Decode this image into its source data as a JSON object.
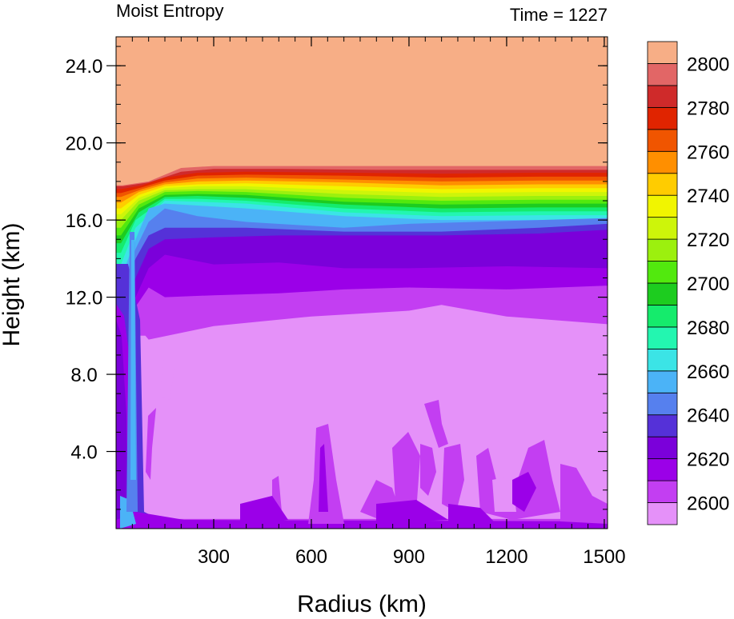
{
  "chart_data": {
    "type": "heatmap",
    "title_left": "Moist Entropy",
    "title_right": "Time = 1227",
    "xlabel": "Radius (km)",
    "ylabel": "Height (km)",
    "xlim": [
      0,
      1510
    ],
    "ylim": [
      0,
      25.5
    ],
    "x_ticks": [
      300,
      600,
      900,
      1200,
      1500
    ],
    "x_tick_labels": [
      "300",
      "600",
      "900",
      "1200",
      "1500"
    ],
    "y_ticks": [
      4,
      8,
      12,
      16,
      20,
      24
    ],
    "y_tick_labels": [
      "4.0",
      "8.0",
      "12.0",
      "16.0",
      "20.0",
      "24.0"
    ],
    "colorbar": {
      "levels": [
        2600,
        2610,
        2620,
        2630,
        2640,
        2650,
        2660,
        2670,
        2680,
        2690,
        2700,
        2710,
        2720,
        2730,
        2740,
        2750,
        2760,
        2770,
        2780,
        2790,
        2800
      ],
      "labels": [
        "2600",
        "2620",
        "2640",
        "2660",
        "2680",
        "2700",
        "2720",
        "2740",
        "2760",
        "2780",
        "2800"
      ],
      "colors": [
        "#E591F9",
        "#C33EF2",
        "#9B00E8",
        "#7B00DA",
        "#5531D8",
        "#5680EE",
        "#4BB3F7",
        "#3BE4E6",
        "#23F6B0",
        "#15EB6C",
        "#1DCC1F",
        "#52E90E",
        "#9CF00E",
        "#CDF50A",
        "#F1F500",
        "#FFCC00",
        "#FF8F00",
        "#F05500",
        "#E02400",
        "#CF2A2A",
        "#E26666",
        "#F7AE86"
      ]
    },
    "contour_layers": [
      {
        "level_index": 21,
        "x": [
          0,
          1510,
          1510,
          0
        ],
        "y": [
          25.5,
          25.5,
          0,
          0
        ]
      },
      {
        "level_index": 20,
        "x": [
          0,
          20,
          100,
          200,
          300,
          500,
          800,
          1100,
          1300,
          1510,
          1510,
          0
        ],
        "y": [
          17.8,
          17.8,
          18.0,
          18.7,
          18.8,
          18.8,
          18.8,
          18.8,
          18.8,
          18.8,
          0,
          0
        ]
      },
      {
        "level_index": 19,
        "x": [
          0,
          20,
          100,
          200,
          300,
          500,
          800,
          1100,
          1300,
          1510,
          1510,
          0
        ],
        "y": [
          17.75,
          17.75,
          17.95,
          18.5,
          18.65,
          18.65,
          18.6,
          18.6,
          18.6,
          18.6,
          0,
          0
        ]
      },
      {
        "level_index": 18,
        "x": [
          0,
          15,
          80,
          150,
          250,
          400,
          700,
          1000,
          1300,
          1510,
          1510,
          0
        ],
        "y": [
          17.6,
          17.6,
          17.8,
          18.2,
          18.45,
          18.5,
          18.45,
          18.4,
          18.45,
          18.45,
          0,
          0
        ]
      },
      {
        "level_index": 17,
        "x": [
          0,
          15,
          80,
          150,
          250,
          400,
          700,
          1000,
          1300,
          1510,
          1510,
          0
        ],
        "y": [
          17.4,
          17.4,
          17.7,
          18.05,
          18.3,
          18.35,
          18.3,
          18.2,
          18.25,
          18.25,
          0,
          0
        ]
      },
      {
        "level_index": 16,
        "x": [
          0,
          15,
          80,
          150,
          250,
          400,
          700,
          1000,
          1300,
          1510,
          1510,
          0
        ],
        "y": [
          17.2,
          17.2,
          17.6,
          17.95,
          18.15,
          18.2,
          18.1,
          18.0,
          18.05,
          18.05,
          0,
          0
        ]
      },
      {
        "level_index": 15,
        "x": [
          0,
          15,
          70,
          150,
          250,
          400,
          700,
          1000,
          1300,
          1510,
          1510,
          0
        ],
        "y": [
          16.9,
          16.9,
          17.45,
          17.85,
          18.0,
          18.05,
          17.95,
          17.8,
          17.85,
          17.85,
          0,
          0
        ]
      },
      {
        "level_index": 14,
        "x": [
          0,
          15,
          70,
          150,
          250,
          400,
          700,
          1000,
          1300,
          1510,
          1510,
          0
        ],
        "y": [
          16.6,
          16.6,
          17.3,
          17.75,
          17.85,
          17.9,
          17.75,
          17.6,
          17.65,
          17.65,
          0,
          0
        ]
      },
      {
        "level_index": 13,
        "x": [
          0,
          15,
          70,
          150,
          250,
          400,
          700,
          1000,
          1300,
          1510,
          1510,
          0
        ],
        "y": [
          16.3,
          16.3,
          17.15,
          17.65,
          17.75,
          17.75,
          17.55,
          17.4,
          17.45,
          17.45,
          0,
          0
        ]
      },
      {
        "level_index": 12,
        "x": [
          0,
          15,
          70,
          150,
          250,
          400,
          700,
          1000,
          1300,
          1510,
          1510,
          0
        ],
        "y": [
          16.0,
          16.0,
          17.0,
          17.55,
          17.6,
          17.6,
          17.35,
          17.2,
          17.25,
          17.25,
          0,
          0
        ]
      },
      {
        "level_index": 11,
        "x": [
          0,
          15,
          70,
          150,
          250,
          400,
          700,
          1000,
          1300,
          1510,
          1510,
          0
        ],
        "y": [
          15.6,
          15.6,
          16.8,
          17.45,
          17.5,
          17.45,
          17.15,
          17.0,
          17.05,
          17.05,
          0,
          0
        ]
      },
      {
        "level_index": 10,
        "x": [
          0,
          15,
          70,
          150,
          250,
          400,
          700,
          1000,
          1300,
          1510,
          1510,
          0
        ],
        "y": [
          15.2,
          15.2,
          16.6,
          17.3,
          17.35,
          17.3,
          16.95,
          16.8,
          16.85,
          16.85,
          0,
          0
        ]
      },
      {
        "level_index": 9,
        "x": [
          0,
          15,
          70,
          150,
          250,
          400,
          700,
          1000,
          1300,
          1510,
          1510,
          0
        ],
        "y": [
          14.8,
          14.8,
          16.4,
          17.2,
          17.25,
          17.15,
          16.8,
          16.6,
          16.65,
          16.65,
          0,
          0
        ]
      },
      {
        "level_index": 8,
        "x": [
          0,
          15,
          60,
          150,
          250,
          400,
          700,
          1000,
          1300,
          1510,
          1510,
          0
        ],
        "y": [
          14.3,
          14.3,
          16.0,
          17.1,
          17.1,
          17.0,
          16.6,
          16.4,
          16.45,
          16.45,
          0,
          0
        ]
      },
      {
        "level_index": 7,
        "x": [
          0,
          15,
          60,
          150,
          250,
          400,
          700,
          1000,
          1300,
          1510,
          1510,
          0
        ],
        "y": [
          13.7,
          13.7,
          15.6,
          17.0,
          16.95,
          16.85,
          16.4,
          16.2,
          16.25,
          16.25,
          0,
          0
        ]
      },
      {
        "level_index": 6,
        "x": [
          0,
          15,
          60,
          100,
          150,
          250,
          400,
          700,
          1000,
          1300,
          1510,
          1510,
          0
        ],
        "y": [
          13.0,
          13.0,
          15.0,
          16.6,
          16.85,
          16.75,
          16.6,
          16.2,
          16.0,
          16.0,
          16.0,
          0,
          0
        ]
      },
      {
        "level_index": 5,
        "x": [
          0,
          15,
          60,
          100,
          150,
          250,
          400,
          700,
          900,
          1100,
          1300,
          1510,
          1510,
          0
        ],
        "y": [
          12.5,
          12.5,
          14.5,
          15.9,
          16.6,
          16.2,
          15.9,
          15.6,
          15.8,
          15.9,
          16.0,
          16.1,
          0,
          0
        ]
      },
      {
        "level_index": 4,
        "x": [
          0,
          15,
          60,
          100,
          150,
          200,
          400,
          700,
          1000,
          1300,
          1510,
          1510,
          0
        ],
        "y": [
          12.0,
          12.0,
          14.0,
          15.2,
          15.6,
          15.6,
          15.6,
          15.4,
          15.4,
          15.6,
          15.8,
          0,
          0
        ]
      },
      {
        "level_index": 3,
        "x": [
          0,
          15,
          60,
          100,
          150,
          300,
          500,
          800,
          1000,
          1300,
          1510,
          1510,
          0
        ],
        "y": [
          11.5,
          11.5,
          13.0,
          14.5,
          15.0,
          15.1,
          15.2,
          15.2,
          15.2,
          15.3,
          15.5,
          0,
          0
        ]
      },
      {
        "level_index": 2,
        "x": [
          0,
          15,
          60,
          100,
          150,
          300,
          500,
          700,
          900,
          1200,
          1510,
          1510,
          0
        ],
        "y": [
          11.0,
          11.0,
          12.0,
          13.5,
          14.2,
          13.7,
          13.8,
          13.5,
          13.5,
          13.6,
          13.5,
          0,
          0
        ]
      },
      {
        "level_index": 1,
        "x": [
          0,
          15,
          60,
          100,
          150,
          300,
          500,
          700,
          900,
          1200,
          1510,
          1510,
          0
        ],
        "y": [
          10.8,
          10.8,
          11.5,
          12.5,
          12.0,
          12.1,
          12.2,
          12.4,
          12.5,
          12.4,
          12.6,
          0,
          0
        ]
      },
      {
        "level_index": 0,
        "x": [
          50,
          90,
          100,
          300,
          600,
          900,
          1000,
          1200,
          1510,
          1510,
          50
        ],
        "y": [
          10.0,
          10.0,
          9.8,
          10.5,
          11.0,
          11.3,
          11.6,
          11.0,
          10.6,
          0.5,
          0.5
        ]
      }
    ],
    "grid": false,
    "legend": "colorbar-right"
  }
}
